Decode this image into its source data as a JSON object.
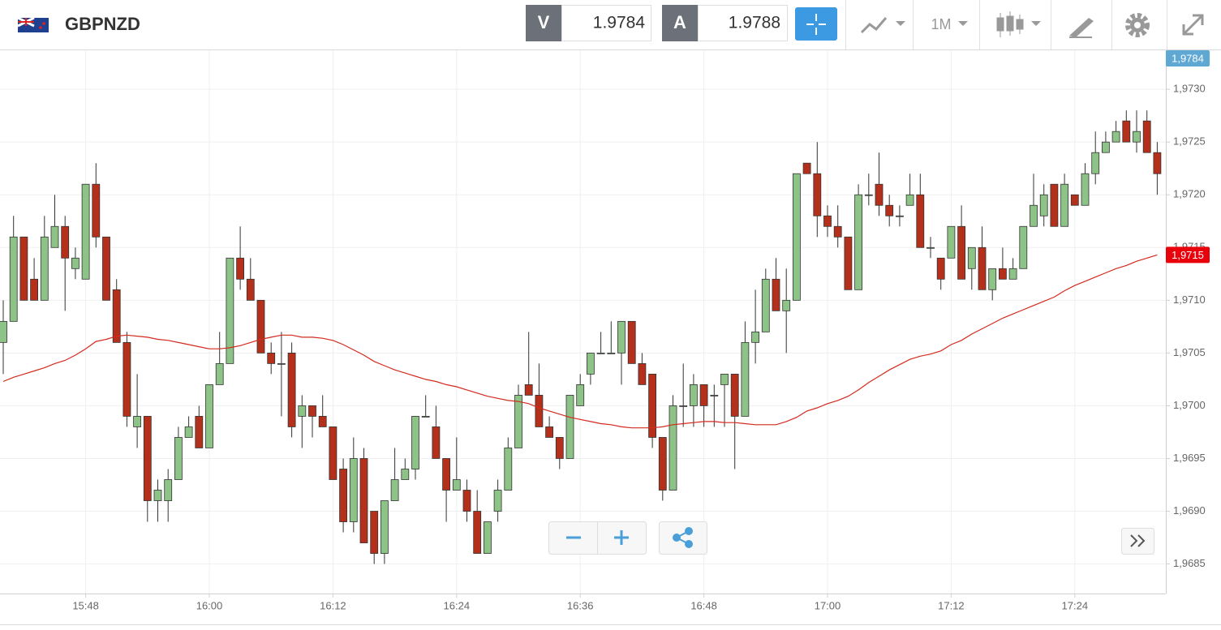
{
  "toolbar": {
    "symbol": "GBPNZD",
    "bid_label": "V",
    "bid": 1.9784,
    "ask_label": "A",
    "ask": 1.9788,
    "timeframe": "1M"
  },
  "chart_data": {
    "type": "candlestick",
    "categories": [
      null,
      null,
      null,
      null,
      null,
      null,
      null,
      null,
      "15:48",
      null,
      null,
      null,
      null,
      null,
      null,
      null,
      null,
      null,
      null,
      null,
      "16:00",
      null,
      null,
      null,
      null,
      null,
      null,
      null,
      null,
      null,
      null,
      null,
      "16:12",
      null,
      null,
      null,
      null,
      null,
      null,
      null,
      null,
      null,
      null,
      null,
      "16:24",
      null,
      null,
      null,
      null,
      null,
      null,
      null,
      null,
      null,
      null,
      null,
      "16:36",
      null,
      null,
      null,
      null,
      null,
      null,
      null,
      null,
      null,
      null,
      null,
      "16:48",
      null,
      null,
      null,
      null,
      null,
      null,
      null,
      null,
      null,
      null,
      null,
      "17:00",
      null,
      null,
      null,
      null,
      null,
      null,
      null,
      null,
      null,
      null,
      null,
      "17:12",
      null,
      null,
      null,
      null,
      null,
      null,
      null,
      null,
      null,
      null,
      null,
      "17:24",
      null,
      null,
      null,
      null,
      null,
      null,
      null,
      null
    ],
    "open": [
      1.9706,
      1.9708,
      1.9716,
      1.9712,
      1.971,
      1.9715,
      1.9717,
      1.9713,
      1.9712,
      1.9721,
      1.9716,
      1.9711,
      1.9706,
      1.9698,
      1.9699,
      1.9691,
      1.9691,
      1.9693,
      1.9697,
      1.9699,
      1.9696,
      1.9702,
      1.9704,
      1.9714,
      1.9712,
      1.971,
      1.9705,
      1.9704,
      1.9705,
      1.9699,
      1.97,
      1.9699,
      1.9698,
      1.9694,
      1.9689,
      1.9695,
      1.969,
      1.9686,
      1.9691,
      1.9693,
      1.9694,
      1.9699,
      1.9698,
      1.9695,
      1.9692,
      1.9692,
      1.969,
      1.9686,
      1.969,
      1.9692,
      1.9696,
      1.9702,
      1.9701,
      1.9698,
      1.9697,
      1.9695,
      1.97,
      1.9703,
      1.9705,
      1.9705,
      1.9705,
      1.9708,
      1.9704,
      1.9703,
      1.9697,
      1.9692,
      1.97,
      1.97,
      1.9702,
      1.9701,
      1.9702,
      1.9703,
      1.9699,
      1.9706,
      1.9707,
      1.9712,
      1.9709,
      1.971,
      1.9723,
      1.9722,
      1.9718,
      1.9717,
      1.9716,
      1.9711,
      1.972,
      1.9721,
      1.9719,
      1.9718,
      1.9719,
      1.972,
      1.9715,
      1.9714,
      1.9714,
      1.9717,
      1.9713,
      1.9715,
      1.9711,
      1.9713,
      1.9712,
      1.9713,
      1.9717,
      1.9718,
      1.9721,
      1.9717,
      1.972,
      1.9719,
      1.9722,
      1.9724,
      1.9725,
      1.9727,
      1.9725,
      1.9727,
      1.9724
    ],
    "high": [
      1.971,
      1.9718,
      1.9716,
      1.9714,
      1.9718,
      1.972,
      1.9718,
      1.9715,
      1.9721,
      1.9723,
      1.9716,
      1.9712,
      1.9707,
      1.9703,
      1.9699,
      1.9693,
      1.9694,
      1.9698,
      1.9699,
      1.97,
      1.9702,
      1.9707,
      1.9714,
      1.9717,
      1.9714,
      1.971,
      1.9706,
      1.9707,
      1.9706,
      1.9701,
      1.97,
      1.9701,
      1.9698,
      1.9695,
      1.9697,
      1.9696,
      1.969,
      1.9691,
      1.9696,
      1.9695,
      1.9699,
      1.9701,
      1.97,
      1.9695,
      1.9697,
      1.9693,
      1.9692,
      1.9689,
      1.9693,
      1.9697,
      1.9702,
      1.9707,
      1.9704,
      1.9699,
      1.9697,
      1.9701,
      1.9703,
      1.9705,
      1.9707,
      1.9708,
      1.9708,
      1.9708,
      1.9705,
      1.9703,
      1.9697,
      1.9701,
      1.9704,
      1.9703,
      1.9702,
      1.9702,
      1.9703,
      1.9703,
      1.9708,
      1.9711,
      1.9713,
      1.9714,
      1.9713,
      1.9722,
      1.9723,
      1.9725,
      1.9719,
      1.9719,
      1.9716,
      1.9721,
      1.9722,
      1.9724,
      1.972,
      1.9719,
      1.9722,
      1.9722,
      1.9716,
      1.9714,
      1.9717,
      1.9719,
      1.9715,
      1.9717,
      1.9713,
      1.9715,
      1.9714,
      1.9717,
      1.9722,
      1.9721,
      1.9721,
      1.9722,
      1.972,
      1.9723,
      1.9726,
      1.9726,
      1.9727,
      1.9728,
      1.9728,
      1.9728,
      1.9725
    ],
    "low": [
      1.9703,
      1.9708,
      1.971,
      1.971,
      1.971,
      1.9715,
      1.9709,
      1.9712,
      1.9712,
      1.9715,
      1.971,
      1.9706,
      1.9698,
      1.9696,
      1.9689,
      1.9689,
      1.9689,
      1.9693,
      1.9697,
      1.9696,
      1.9696,
      1.9702,
      1.9704,
      1.9711,
      1.971,
      1.9705,
      1.9703,
      1.9699,
      1.9697,
      1.9696,
      1.9697,
      1.9698,
      1.9693,
      1.9688,
      1.9688,
      1.9687,
      1.9685,
      1.9685,
      1.9691,
      1.9693,
      1.9693,
      1.9699,
      1.9695,
      1.9689,
      1.9692,
      1.9689,
      1.9686,
      1.9686,
      1.9689,
      1.9692,
      1.9696,
      1.9701,
      1.9698,
      1.9697,
      1.9694,
      1.9695,
      1.97,
      1.9702,
      1.9705,
      1.9705,
      1.9702,
      1.9704,
      1.9702,
      1.9696,
      1.9691,
      1.9692,
      1.9698,
      1.9698,
      1.9698,
      1.9698,
      1.9698,
      1.9694,
      1.9699,
      1.9704,
      1.9707,
      1.9709,
      1.9705,
      1.971,
      1.9722,
      1.9716,
      1.9716,
      1.9715,
      1.9711,
      1.9711,
      1.9719,
      1.9718,
      1.9717,
      1.9717,
      1.9719,
      1.9715,
      1.9714,
      1.9711,
      1.9714,
      1.9712,
      1.9711,
      1.9711,
      1.971,
      1.9712,
      1.9712,
      1.9713,
      1.9717,
      1.9717,
      1.9717,
      1.9717,
      1.9719,
      1.9719,
      1.9721,
      1.9724,
      1.9725,
      1.9725,
      1.9724,
      1.9724,
      1.972
    ],
    "close": [
      1.9708,
      1.9716,
      1.971,
      1.971,
      1.9716,
      1.9717,
      1.9714,
      1.9714,
      1.9721,
      1.9716,
      1.971,
      1.9706,
      1.9699,
      1.9699,
      1.9691,
      1.9692,
      1.9693,
      1.9697,
      1.9698,
      1.9696,
      1.9702,
      1.9704,
      1.9714,
      1.9712,
      1.971,
      1.9705,
      1.9704,
      1.9704,
      1.9698,
      1.97,
      1.9699,
      1.9698,
      1.9693,
      1.9689,
      1.9695,
      1.9687,
      1.9686,
      1.9691,
      1.9693,
      1.9694,
      1.9699,
      1.9699,
      1.9695,
      1.9692,
      1.9693,
      1.969,
      1.9686,
      1.9689,
      1.9692,
      1.9696,
      1.9701,
      1.9701,
      1.9698,
      1.9697,
      1.9695,
      1.9701,
      1.9702,
      1.9705,
      1.9705,
      1.9705,
      1.9708,
      1.9704,
      1.9702,
      1.9697,
      1.9692,
      1.97,
      1.97,
      1.9702,
      1.97,
      1.9701,
      1.9703,
      1.9699,
      1.9706,
      1.9707,
      1.9712,
      1.9709,
      1.971,
      1.9722,
      1.9722,
      1.9718,
      1.9717,
      1.9716,
      1.9711,
      1.972,
      1.972,
      1.9719,
      1.9718,
      1.9718,
      1.972,
      1.9715,
      1.9715,
      1.9712,
      1.9717,
      1.9712,
      1.9715,
      1.9711,
      1.9713,
      1.9712,
      1.9713,
      1.9717,
      1.9719,
      1.972,
      1.9717,
      1.9721,
      1.9719,
      1.9722,
      1.9724,
      1.9725,
      1.9726,
      1.9725,
      1.9726,
      1.9724,
      1.9722
    ],
    "moving_average": {
      "color": "#d42a1e",
      "values": [
        1.97023,
        1.97027,
        1.9703,
        1.97033,
        1.97036,
        1.9704,
        1.97043,
        1.97048,
        1.97054,
        1.97061,
        1.97063,
        1.97066,
        1.97067,
        1.97066,
        1.97065,
        1.97063,
        1.97062,
        1.9706,
        1.97058,
        1.97056,
        1.97054,
        1.97054,
        1.97055,
        1.97057,
        1.9706,
        1.97063,
        1.97065,
        1.97067,
        1.97067,
        1.97065,
        1.97065,
        1.97064,
        1.97062,
        1.97058,
        1.97053,
        1.97048,
        1.97042,
        1.97038,
        1.97034,
        1.97031,
        1.97028,
        1.97025,
        1.97023,
        1.9702,
        1.97018,
        1.97015,
        1.97012,
        1.97009,
        1.97007,
        1.97005,
        1.97004,
        1.97002,
        1.96998,
        1.96995,
        1.96992,
        1.96989,
        1.96987,
        1.96985,
        1.96983,
        1.96982,
        1.9698,
        1.96979,
        1.96979,
        1.96979,
        1.9698,
        1.96982,
        1.96983,
        1.96984,
        1.96985,
        1.96985,
        1.96984,
        1.96984,
        1.96983,
        1.96982,
        1.96982,
        1.96982,
        1.96985,
        1.96989,
        1.96995,
        1.96998,
        1.97002,
        1.97005,
        1.97009,
        1.97015,
        1.97022,
        1.97028,
        1.97034,
        1.97039,
        1.97044,
        1.97047,
        1.97049,
        1.97052,
        1.97058,
        1.97062,
        1.97068,
        1.97073,
        1.97078,
        1.97083,
        1.97087,
        1.97091,
        1.97095,
        1.97099,
        1.97103,
        1.97109,
        1.97114,
        1.97118,
        1.97122,
        1.97126,
        1.9713,
        1.97133,
        1.97137,
        1.9714,
        1.97143
      ]
    },
    "up_color": "#8dc386",
    "down_color": "#b5301b",
    "ylim": [
      1.96822,
      1.97337
    ],
    "yticks": [
      {
        "value": 1.9685,
        "label": "1,9685"
      },
      {
        "value": 1.969,
        "label": "1,9690"
      },
      {
        "value": 1.9695,
        "label": "1,9695"
      },
      {
        "value": 1.97,
        "label": "1,9700"
      },
      {
        "value": 1.9705,
        "label": "1,9705"
      },
      {
        "value": 1.971,
        "label": "1,9710"
      },
      {
        "value": 1.9715,
        "label": "1,9715"
      },
      {
        "value": 1.972,
        "label": "1,9720"
      },
      {
        "value": 1.9725,
        "label": "1,9725"
      },
      {
        "value": 1.973,
        "label": "1,9730"
      }
    ],
    "price_tags": [
      {
        "label": "1,9784",
        "color": "#5fa8d3"
      },
      {
        "label": "1,9715",
        "color": "#e8000b"
      }
    ],
    "grid": true
  }
}
